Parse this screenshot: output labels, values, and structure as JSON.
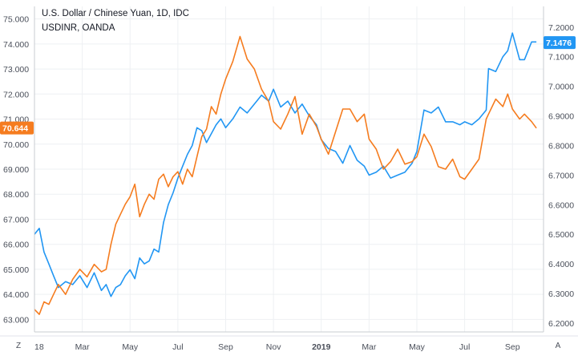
{
  "legend": {
    "title": "U.S. Dollar / Chinese Yuan, 1D, IDC",
    "subtitle": "USDINR, OANDA"
  },
  "buttons": {
    "zoom_label": "Z",
    "autoscale_label": "A"
  },
  "colors": {
    "usdcny": "#2196f3",
    "usdinr": "#f57c1f",
    "grid": "#eef0f3",
    "axis_text": "#4a4f5a"
  },
  "chart_data": {
    "type": "line",
    "title": "U.S. Dollar / Chinese Yuan, 1D, IDC",
    "subtitle": "USDINR, OANDA",
    "x_ticks": [
      "18",
      "Mar",
      "May",
      "Jul",
      "Sep",
      "Nov",
      "2019",
      "Mar",
      "May",
      "Jul",
      "Sep"
    ],
    "x_tick_times": [
      0,
      2,
      4,
      6,
      8,
      10,
      12,
      14,
      16,
      18,
      20
    ],
    "xlim": [
      0,
      21.3
    ],
    "grid": true,
    "left_axis": {
      "ylim": [
        62.5,
        75.5
      ],
      "ticks": [
        "63.000",
        "64.000",
        "65.000",
        "66.000",
        "67.000",
        "68.000",
        "69.000",
        "70.000",
        "71.000",
        "72.000",
        "73.000",
        "74.000",
        "75.000"
      ],
      "last_value_label": "70.644"
    },
    "right_axis": {
      "ylim": [
        6.17,
        7.27
      ],
      "ticks": [
        "6.2000",
        "6.3000",
        "6.4000",
        "6.5000",
        "6.6000",
        "6.7000",
        "6.8000",
        "6.9000",
        "7.0000",
        "7.1000",
        "7.2000"
      ],
      "last_value_label": "7.1476"
    },
    "series": [
      {
        "name": "U.S. Dollar / Chinese Yuan",
        "axis": "right",
        "color": "#2196f3",
        "x": [
          0,
          0.2,
          0.4,
          0.6,
          0.8,
          1.0,
          1.3,
          1.6,
          1.9,
          2.2,
          2.5,
          2.8,
          3.0,
          3.2,
          3.4,
          3.6,
          3.8,
          4.0,
          4.2,
          4.4,
          4.6,
          4.8,
          5.0,
          5.2,
          5.4,
          5.6,
          5.8,
          6.0,
          6.2,
          6.4,
          6.6,
          6.8,
          7.0,
          7.2,
          7.4,
          7.6,
          7.8,
          8.0,
          8.3,
          8.6,
          8.9,
          9.2,
          9.5,
          9.8,
          10.0,
          10.3,
          10.6,
          10.9,
          11.2,
          11.5,
          11.8,
          12.0,
          12.3,
          12.6,
          12.9,
          13.2,
          13.5,
          13.8,
          14.0,
          14.3,
          14.6,
          14.9,
          15.2,
          15.5,
          15.8,
          16.0,
          16.3,
          16.6,
          16.9,
          17.2,
          17.5,
          17.8,
          18.0,
          18.3,
          18.6,
          18.9,
          19.0,
          19.3,
          19.6,
          19.8,
          20.0,
          20.3,
          20.5,
          20.8,
          21.0
        ],
        "y": [
          6.5,
          6.52,
          6.44,
          6.4,
          6.36,
          6.32,
          6.34,
          6.33,
          6.36,
          6.32,
          6.37,
          6.31,
          6.33,
          6.29,
          6.32,
          6.33,
          6.36,
          6.38,
          6.35,
          6.42,
          6.4,
          6.41,
          6.45,
          6.44,
          6.54,
          6.6,
          6.64,
          6.69,
          6.73,
          6.77,
          6.8,
          6.86,
          6.85,
          6.81,
          6.84,
          6.87,
          6.89,
          6.86,
          6.89,
          6.93,
          6.91,
          6.94,
          6.97,
          6.95,
          6.99,
          6.93,
          6.95,
          6.91,
          6.94,
          6.9,
          6.87,
          6.82,
          6.79,
          6.78,
          6.74,
          6.8,
          6.75,
          6.73,
          6.7,
          6.71,
          6.73,
          6.69,
          6.7,
          6.71,
          6.74,
          6.78,
          6.92,
          6.91,
          6.93,
          6.88,
          6.88,
          6.87,
          6.88,
          6.87,
          6.89,
          6.92,
          7.06,
          7.05,
          7.1,
          7.12,
          7.18,
          7.09,
          7.09,
          7.15,
          7.15
        ]
      },
      {
        "name": "USDINR",
        "axis": "left",
        "color": "#f57c1f",
        "x": [
          0,
          0.2,
          0.4,
          0.6,
          0.8,
          1.0,
          1.3,
          1.6,
          1.9,
          2.2,
          2.5,
          2.8,
          3.0,
          3.2,
          3.4,
          3.6,
          3.8,
          4.0,
          4.2,
          4.4,
          4.6,
          4.8,
          5.0,
          5.2,
          5.4,
          5.6,
          5.8,
          6.0,
          6.2,
          6.4,
          6.6,
          6.8,
          7.0,
          7.2,
          7.4,
          7.6,
          7.8,
          8.0,
          8.3,
          8.6,
          8.9,
          9.2,
          9.5,
          9.8,
          10.0,
          10.3,
          10.6,
          10.9,
          11.2,
          11.5,
          11.8,
          12.0,
          12.3,
          12.6,
          12.9,
          13.2,
          13.5,
          13.8,
          14.0,
          14.3,
          14.6,
          14.9,
          15.2,
          15.5,
          15.8,
          16.0,
          16.3,
          16.6,
          16.9,
          17.2,
          17.5,
          17.8,
          18.0,
          18.3,
          18.6,
          18.9,
          19.0,
          19.3,
          19.6,
          19.8,
          20.0,
          20.3,
          20.5,
          20.8,
          21.0
        ],
        "y": [
          63.4,
          63.2,
          63.7,
          63.6,
          64.0,
          64.4,
          64.0,
          64.6,
          65.0,
          64.7,
          65.2,
          64.9,
          65.0,
          66.0,
          66.8,
          67.2,
          67.6,
          67.9,
          68.4,
          67.1,
          67.6,
          68.0,
          67.8,
          68.6,
          68.8,
          68.3,
          68.7,
          68.9,
          68.4,
          69.0,
          68.7,
          69.5,
          70.3,
          70.6,
          71.5,
          71.2,
          72.0,
          72.6,
          73.3,
          74.3,
          73.4,
          73.0,
          72.2,
          71.7,
          70.9,
          70.6,
          71.2,
          71.9,
          70.4,
          71.2,
          70.7,
          70.2,
          69.6,
          70.5,
          71.4,
          71.4,
          70.9,
          71.2,
          70.2,
          69.8,
          69.0,
          69.3,
          69.8,
          69.2,
          69.3,
          69.5,
          70.4,
          69.9,
          69.1,
          69.0,
          69.4,
          68.7,
          68.6,
          69.0,
          69.4,
          71.0,
          71.2,
          71.8,
          71.5,
          72.0,
          71.4,
          71.0,
          71.2,
          70.9,
          70.64
        ]
      }
    ]
  }
}
